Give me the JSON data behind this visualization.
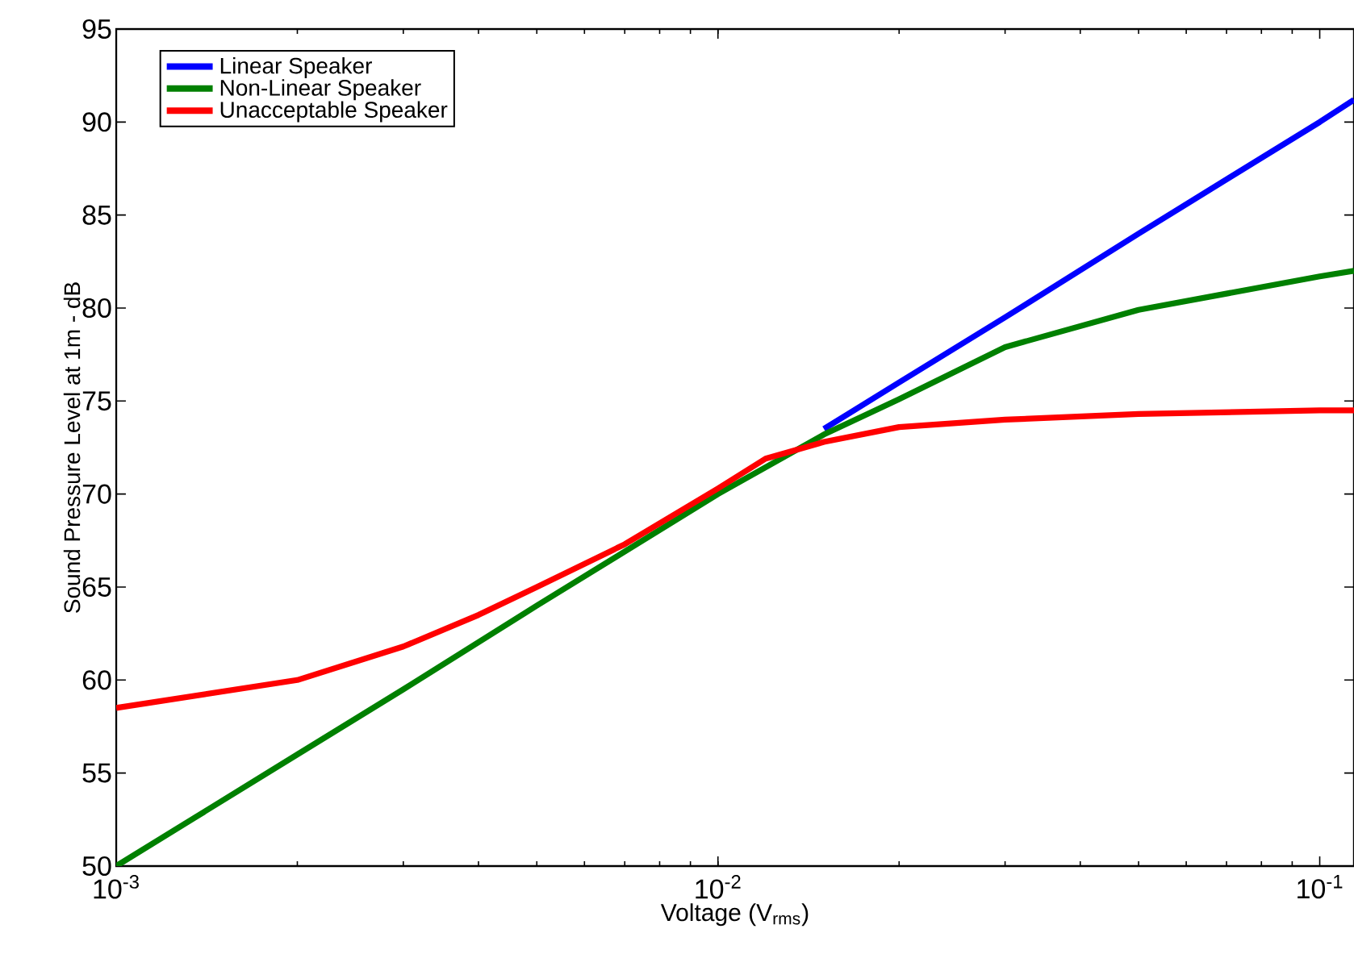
{
  "chart_data": {
    "type": "line",
    "xlabel": "Voltage (V$_{rms}$)",
    "ylabel": "Sound Pressure Level at 1m - dB",
    "log": "x",
    "xlim": [
      0.001,
      0.114
    ],
    "ylim": [
      50,
      95
    ],
    "xticks": [
      {
        "value": 0.001,
        "label": "10$^{-3}$"
      },
      {
        "value": 0.01,
        "label": "10$^{-2}$"
      },
      {
        "value": 0.1,
        "label": "10$^{-1}$"
      }
    ],
    "yticks": [
      50,
      55,
      60,
      65,
      70,
      75,
      80,
      85,
      90,
      95
    ],
    "legend": "top left",
    "grid": false,
    "marker": "none",
    "line_style": "solid",
    "series": [
      {
        "name": "Linear Speaker",
        "color": "#0000ff",
        "x": [
          0.015,
          0.02,
          0.03,
          0.05,
          0.1,
          0.114
        ],
        "values": [
          73.5,
          76,
          79.5,
          84,
          90,
          91.2
        ]
      },
      {
        "name": "Non-Linear Speaker",
        "color": "#008000",
        "x": [
          0.001,
          0.002,
          0.003,
          0.005,
          0.01,
          0.015,
          0.02,
          0.03,
          0.05,
          0.1,
          0.114
        ],
        "values": [
          50,
          56,
          59.5,
          64,
          70,
          73.2,
          75.1,
          77.9,
          79.9,
          81.7,
          82.0
        ]
      },
      {
        "name": "Unacceptable Speaker",
        "color": "#ff0000",
        "x": [
          0.001,
          0.002,
          0.003,
          0.004,
          0.005,
          0.007,
          0.01,
          0.012,
          0.015,
          0.02,
          0.03,
          0.05,
          0.1,
          0.114
        ],
        "values": [
          58.5,
          60,
          61.8,
          63.5,
          65,
          67.3,
          70.3,
          71.9,
          72.8,
          73.6,
          74,
          74.3,
          74.5,
          74.5
        ]
      }
    ]
  }
}
